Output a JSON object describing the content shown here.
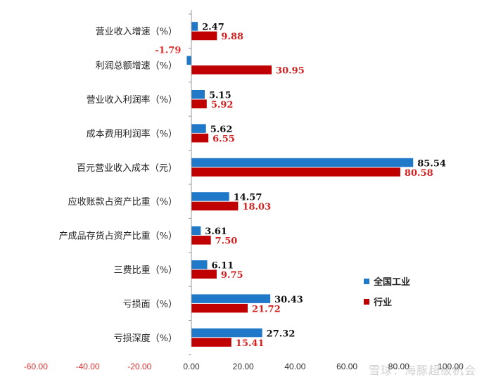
{
  "chart_data": {
    "type": "bar",
    "orientation": "horizontal",
    "categories": [
      "营业收入增速（%）",
      "利润总额增速（%）",
      "营业收入利润率（%）",
      "成本费用利润率（%）",
      "百元营业收入成本（元）",
      "应收账款占资产比重（%）",
      "产成品存货占资产比重（%）",
      "三费比重（%）",
      "亏损面（%）",
      "亏损深度（%）"
    ],
    "series": [
      {
        "name": "全国工业",
        "color": "#1F78C8",
        "values": [
          2.47,
          -1.79,
          5.15,
          5.62,
          85.54,
          14.57,
          3.61,
          6.11,
          30.43,
          27.32
        ],
        "labels": [
          "2.47",
          "-1.79",
          "5.15",
          "5.62",
          "85.54",
          "14.57",
          "3.61",
          "6.11",
          "30.43",
          "27.32"
        ]
      },
      {
        "name": "行业",
        "color": "#C00000",
        "values": [
          9.88,
          30.95,
          5.92,
          6.55,
          80.58,
          18.03,
          7.5,
          9.75,
          21.72,
          15.41
        ],
        "labels": [
          "9.88",
          "30.95",
          "5.92",
          "6.55",
          "80.58",
          "18.03",
          "7.50",
          "9.75",
          "21.72",
          "15.41"
        ]
      }
    ],
    "xlim": [
      -60,
      100
    ],
    "xticks": [
      "-60.00",
      "-40.00",
      "-20.00",
      "0.00",
      "20.00",
      "40.00",
      "60.00",
      "80.00",
      "100.00"
    ],
    "xtick_values": [
      -60,
      -40,
      -20,
      0,
      20,
      40,
      60,
      80,
      100
    ],
    "negative_tick_color": "#E03030",
    "grid": false,
    "legend_position": "right"
  },
  "watermark": "雪球：海豚超级机会"
}
